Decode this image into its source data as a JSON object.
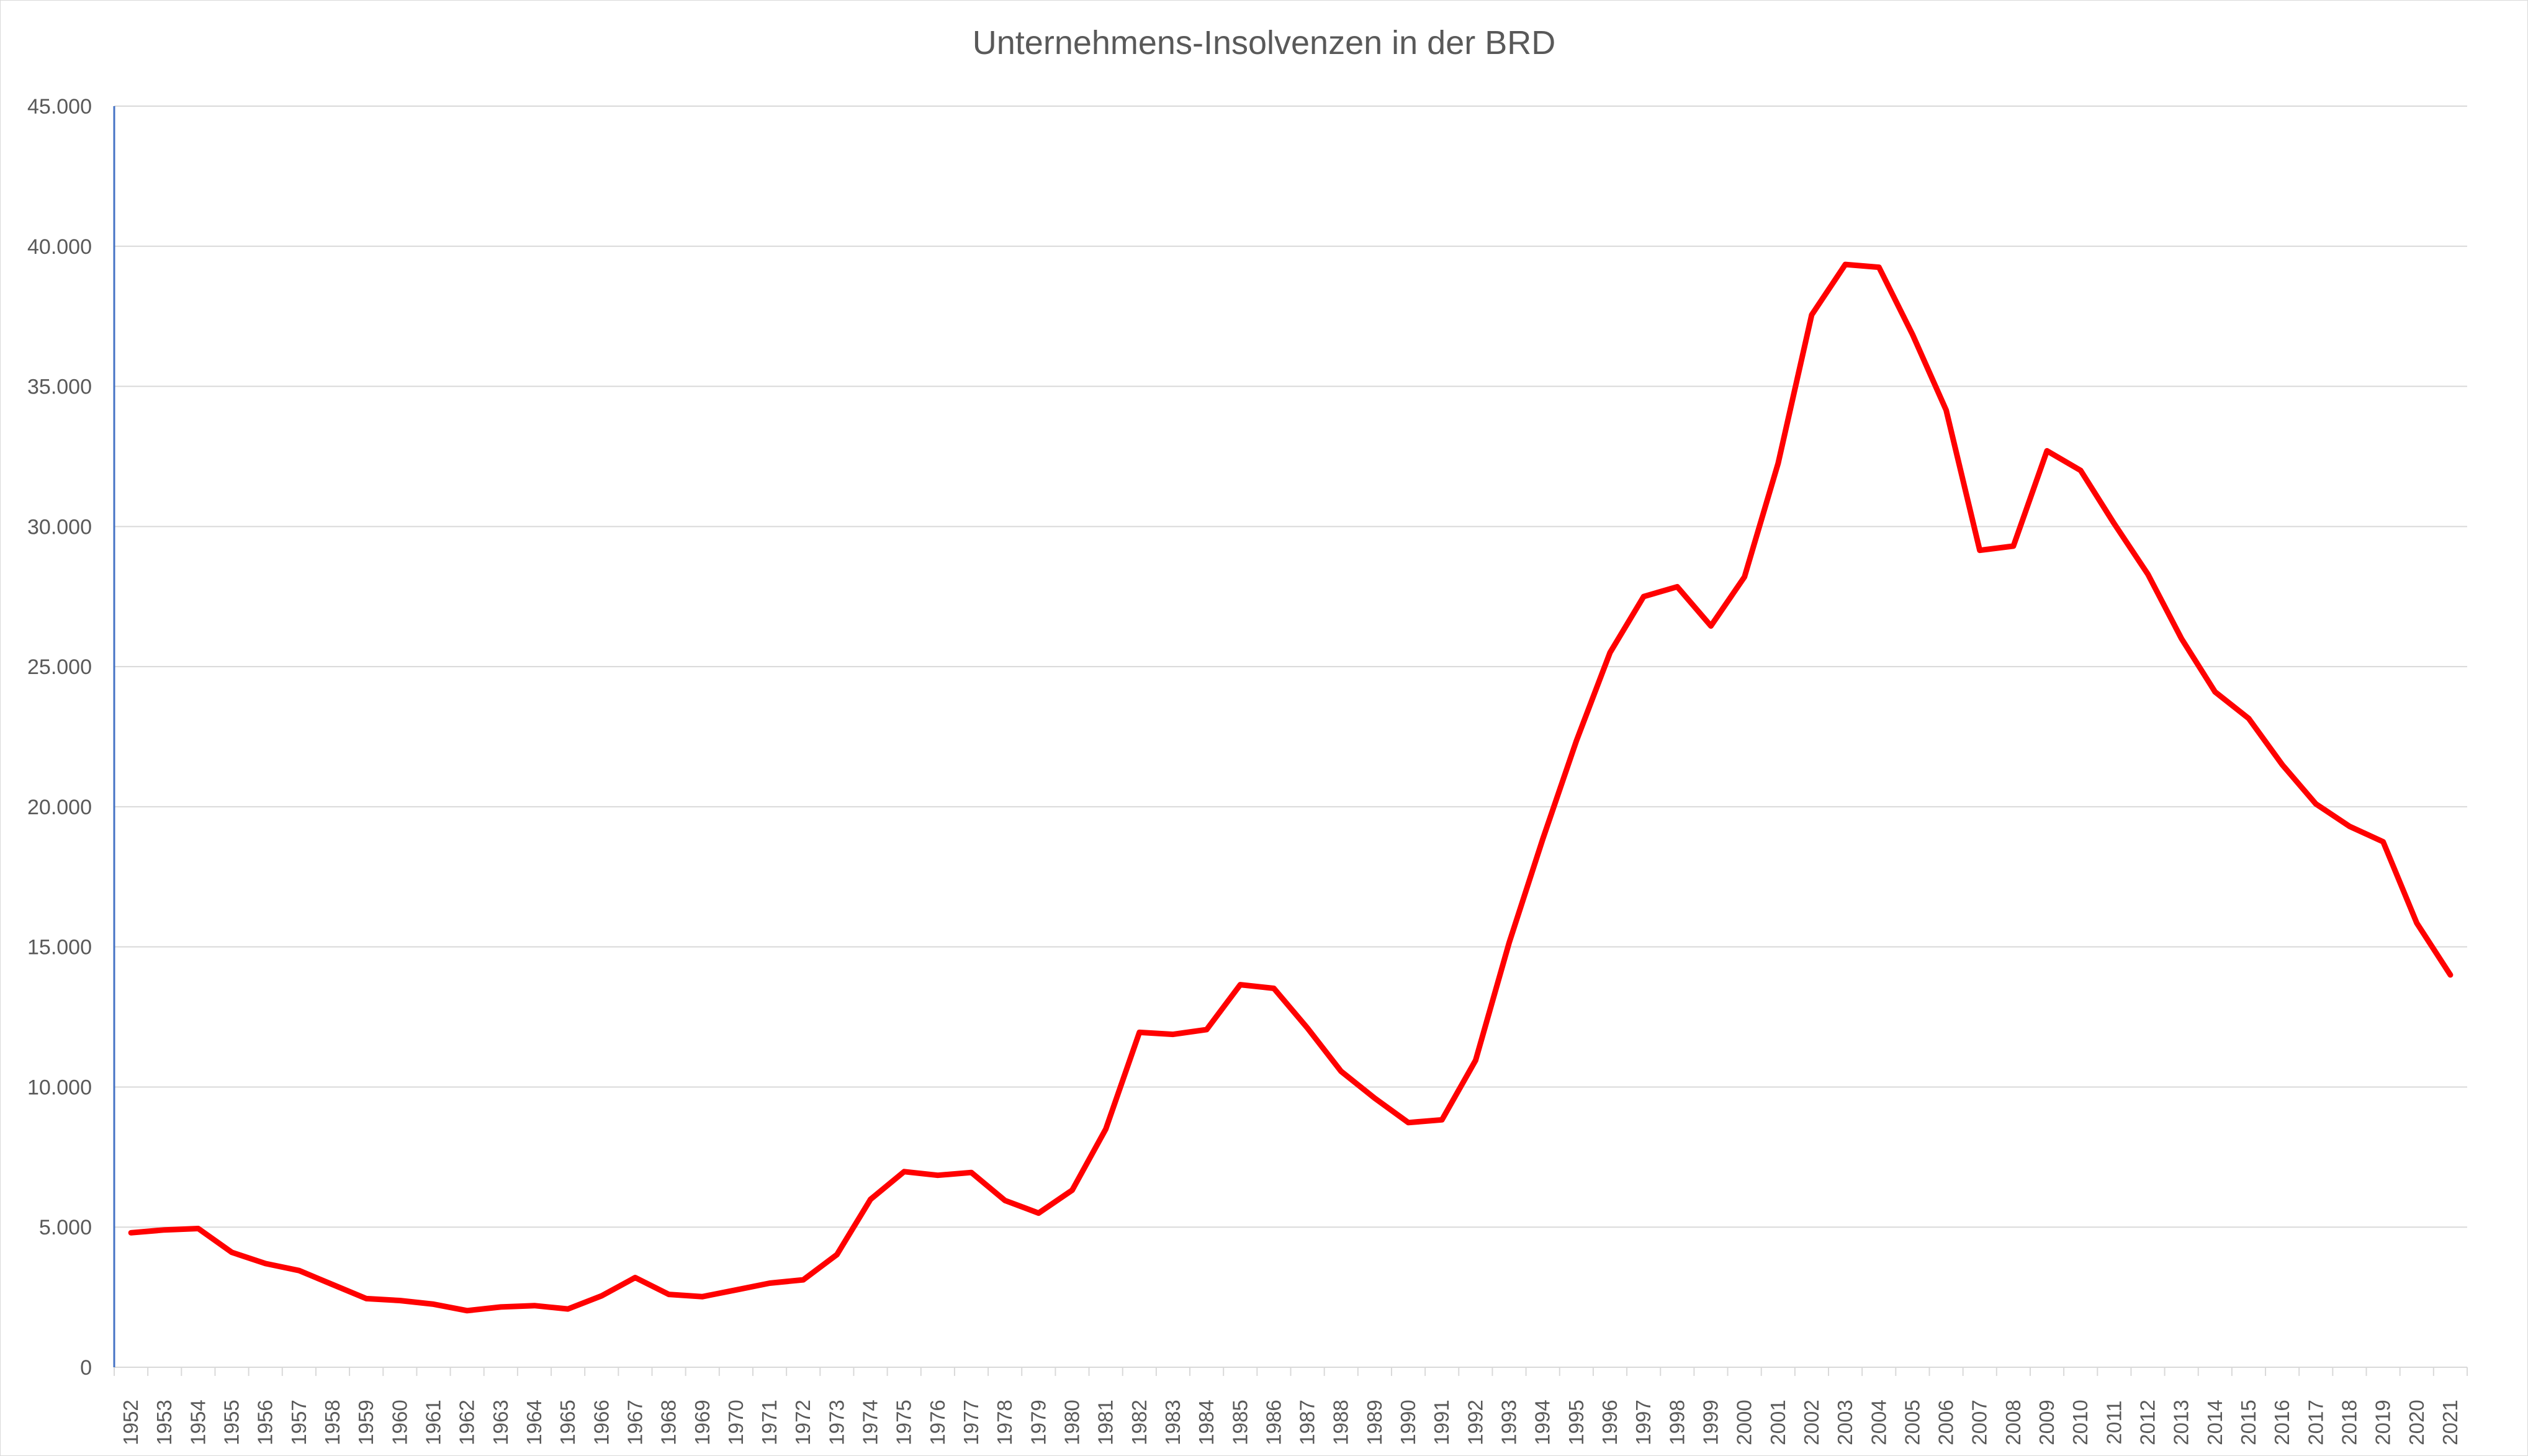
{
  "chart_data": {
    "type": "line",
    "title": "Unternehmens-Insolvenzen in der BRD",
    "xlabel": "",
    "ylabel": "",
    "ylim": [
      0,
      45000
    ],
    "yticks": [
      0,
      5000,
      10000,
      15000,
      20000,
      25000,
      30000,
      35000,
      40000,
      45000
    ],
    "ytick_labels": [
      "0",
      "5.000",
      "10.000",
      "15.000",
      "20.000",
      "25.000",
      "30.000",
      "35.000",
      "40.000",
      "45.000"
    ],
    "grid": true,
    "legend": "none",
    "line_color": "#ff0000",
    "categories": [
      "1952",
      "1953",
      "1954",
      "1955",
      "1956",
      "1957",
      "1958",
      "1959",
      "1960",
      "1961",
      "1962",
      "1963",
      "1964",
      "1965",
      "1966",
      "1967",
      "1968",
      "1969",
      "1970",
      "1971",
      "1972",
      "1973",
      "1974",
      "1975",
      "1976",
      "1977",
      "1978",
      "1979",
      "1980",
      "1981",
      "1982",
      "1983",
      "1984",
      "1985",
      "1986",
      "1987",
      "1988",
      "1989",
      "1990",
      "1991",
      "1992",
      "1993",
      "1994",
      "1995",
      "1996",
      "1997",
      "1998",
      "1999",
      "2000",
      "2001",
      "2002",
      "2003",
      "2004",
      "2005",
      "2006",
      "2007",
      "2008",
      "2009",
      "2010",
      "2011",
      "2012",
      "2013",
      "2014",
      "2015",
      "2016",
      "2017",
      "2018",
      "2019",
      "2020",
      "2021"
    ],
    "series": [
      {
        "values": [
          4800,
          4900,
          4950,
          4100,
          3700,
          3450,
          2950,
          2450,
          2380,
          2250,
          2020,
          2150,
          2200,
          2080,
          2550,
          3200,
          2600,
          2520,
          2760,
          3000,
          3120,
          4020,
          5990,
          6980,
          6850,
          6950,
          5950,
          5500,
          6320,
          8500,
          11950,
          11880,
          12050,
          13650,
          13520,
          12100,
          10560,
          9600,
          8730,
          8830,
          10950,
          15150,
          18850,
          22350,
          25500,
          27500,
          27850,
          26450,
          28200,
          32250,
          37550,
          39350,
          39250,
          36850,
          34150,
          29150,
          29300,
          32700,
          32000,
          30100,
          28300,
          26000,
          24100,
          23150,
          21500,
          20100,
          19300,
          18750,
          15850,
          14000
        ]
      }
    ]
  }
}
